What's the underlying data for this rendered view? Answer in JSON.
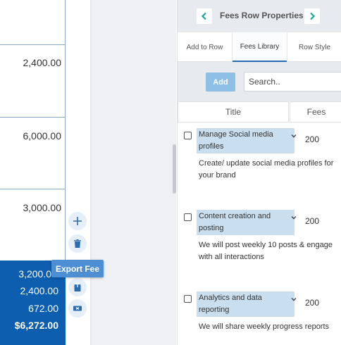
{
  "document": {
    "amounts": [
      "2,400.00",
      "6,000.00",
      "3,000.00"
    ],
    "totals": {
      "subtotal": "3,200.0",
      "line2": "2,400.00",
      "line3": "672.00",
      "grand_total": "$6,272.00"
    }
  },
  "row_tools": {
    "tooltip": "Export Fee",
    "icons": [
      "plus-icon",
      "trash-icon",
      "export-icon",
      "ticket-icon"
    ]
  },
  "panel": {
    "title": "Fees Row Properties",
    "tabs": [
      {
        "label": "Add to Row",
        "active": false
      },
      {
        "label": "Fees Library",
        "active": true
      },
      {
        "label": "Row Style",
        "active": false
      }
    ],
    "add_label": "Add",
    "search_placeholder": "Search..",
    "columns": {
      "title": "Title",
      "fees": "Fees"
    },
    "fees": [
      {
        "name": "Manage Social media profiles",
        "fee": "200",
        "description": "Create/ update social media profiles for your brand",
        "checked": false
      },
      {
        "name": "Content creation and posting",
        "fee": "200",
        "description": "We will post weekly 10 posts & engage with all interactions",
        "checked": false
      },
      {
        "name": "Analytics and data reporting",
        "fee": "200",
        "description": "We will share weekly progress reports",
        "checked": false
      }
    ]
  },
  "colors": {
    "totals_bg": "#0d5eae",
    "accent": "#2b6cb0",
    "tooltip_bg": "#4e8fd4",
    "add_button": "#8ebfe4",
    "nav_arrow": "#1fa89a",
    "name_highlight": "#c9dff0"
  }
}
